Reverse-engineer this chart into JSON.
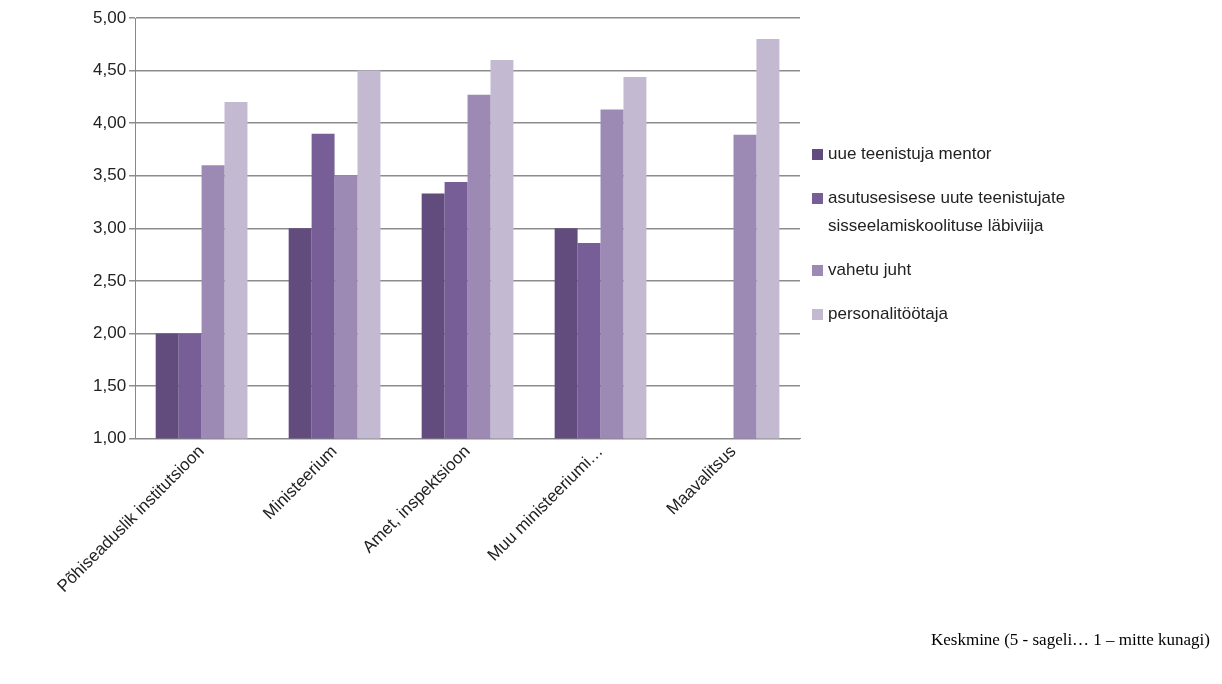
{
  "chart_data": {
    "type": "bar",
    "categories": [
      "Põhiseaduslik institutsioon",
      "Ministeerium",
      "Amet, inspektsioon",
      "Muu ministeeriumi…",
      "Maavalitsus"
    ],
    "series": [
      {
        "name": "uue teenistuja mentor",
        "color": "#614c7d",
        "values": [
          2.0,
          3.0,
          3.33,
          3.0,
          null
        ]
      },
      {
        "name": "asutusesisese uute teenistujate sisseelamiskoolituse läbiviija",
        "color": "#775e96",
        "values": [
          2.0,
          3.9,
          3.44,
          2.86,
          null
        ]
      },
      {
        "name": "vahetu juht",
        "color": "#9c8ab4",
        "values": [
          3.6,
          3.5,
          4.27,
          4.13,
          3.89
        ]
      },
      {
        "name": "personalitöötaja",
        "color": "#c3b9d1",
        "values": [
          4.2,
          4.5,
          4.6,
          4.44,
          4.8
        ]
      }
    ],
    "ylim": [
      1,
      5
    ],
    "yticks": [
      {
        "value": 1,
        "label": "1,00"
      },
      {
        "value": 1.5,
        "label": "1,50"
      },
      {
        "value": 2,
        "label": "2,00"
      },
      {
        "value": 2.5,
        "label": "2,50"
      },
      {
        "value": 3,
        "label": "3,00"
      },
      {
        "value": 3.5,
        "label": "3,50"
      },
      {
        "value": 4,
        "label": "4,00"
      },
      {
        "value": 4.5,
        "label": "4,50"
      },
      {
        "value": 5,
        "label": "5,00"
      }
    ],
    "grid": "y",
    "legend": "right",
    "annotations": [
      "Keskmine (5 - sageli… 1 – mitte kunagi)"
    ]
  }
}
